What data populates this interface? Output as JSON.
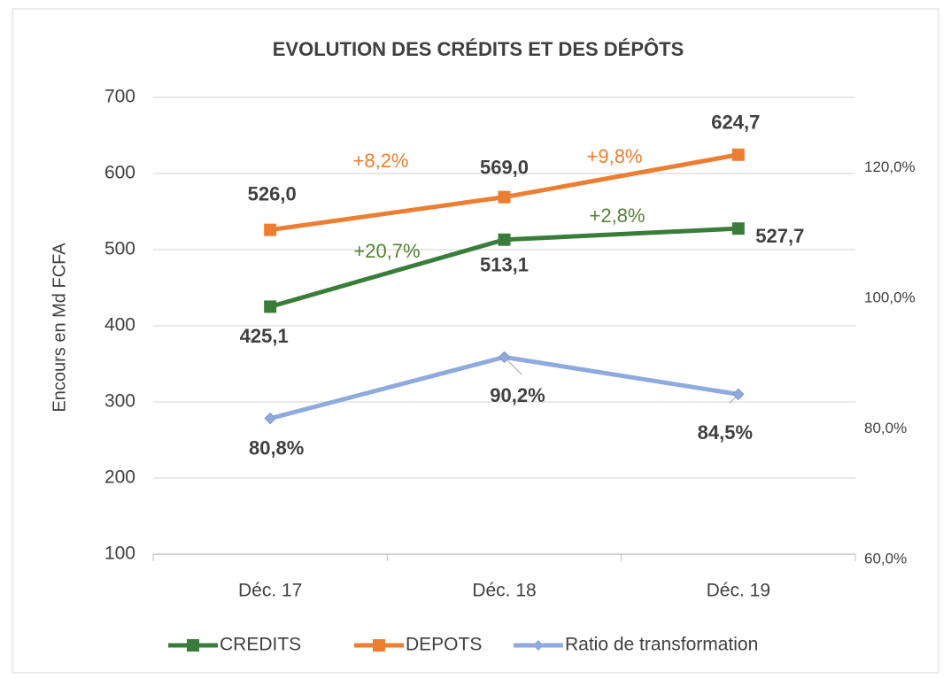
{
  "chart_data": {
    "type": "line",
    "title": "EVOLUTION DES CRÉDITS ET DES DÉPÔTS",
    "y_label": "Encours en Md FCFA",
    "categories": [
      "Déc. 17",
      "Déc. 18",
      "Déc. 19"
    ],
    "ylim": [
      100,
      700
    ],
    "yticks": [
      100,
      200,
      300,
      400,
      500,
      600,
      700
    ],
    "y2lim": [
      60,
      130
    ],
    "y2ticks": [
      {
        "value": 60,
        "label": "60,0%"
      },
      {
        "value": 80,
        "label": "80,0%"
      },
      {
        "value": 100,
        "label": "100,0%"
      },
      {
        "value": 120,
        "label": "120,0%"
      }
    ],
    "grid": true,
    "legend": "bottom",
    "series": [
      {
        "name": "CREDITS",
        "color": "#3a7d3a",
        "marker": "square",
        "values": [
          425.1,
          513.1,
          527.7
        ],
        "value_labels": [
          "425,1",
          "513,1",
          "527,7"
        ]
      },
      {
        "name": "DEPOTS",
        "color": "#ed7d31",
        "marker": "square",
        "values": [
          526.0,
          569.0,
          624.7
        ],
        "value_labels": [
          "526,0",
          "569,0",
          "624,7"
        ]
      },
      {
        "name": "Ratio de transformation",
        "color": "#8faadc",
        "marker": "diamond",
        "axis": "y2",
        "values": [
          80.8,
          90.2,
          84.5
        ],
        "value_labels": [
          "80,8%",
          "90,2%",
          "84,5%"
        ]
      }
    ],
    "annotations": [
      {
        "text": "+8,2%",
        "color": "#ed7d31"
      },
      {
        "text": "+9,8%",
        "color": "#ed7d31"
      },
      {
        "text": "+20,7%",
        "color": "#548235"
      },
      {
        "text": "+2,8%",
        "color": "#548235"
      }
    ]
  }
}
